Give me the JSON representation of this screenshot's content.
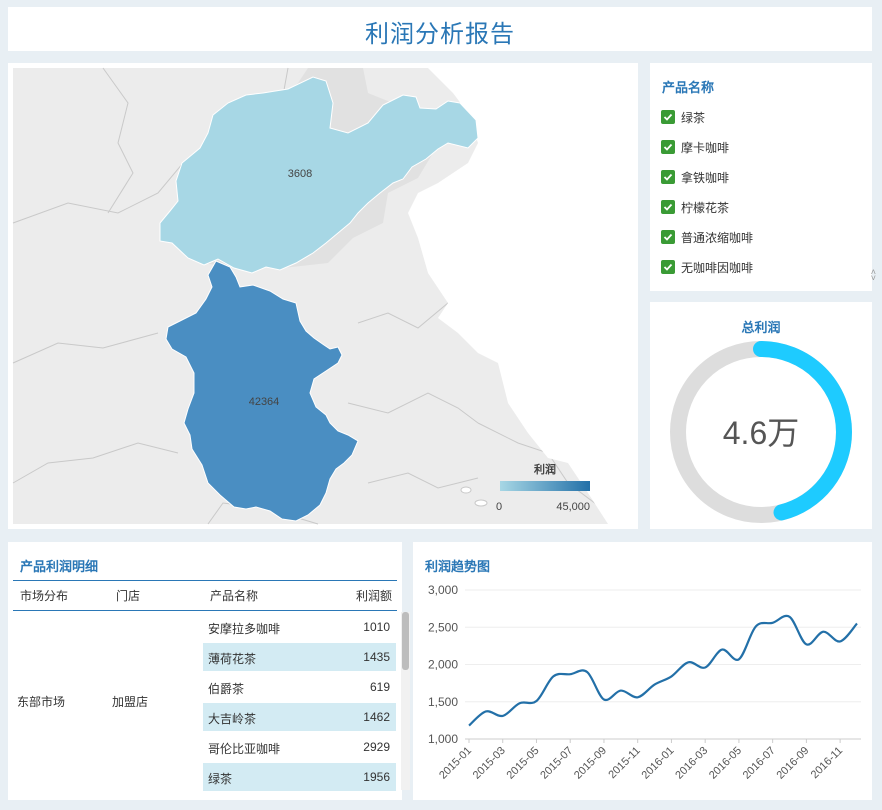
{
  "header": {
    "title": "利润分析报告"
  },
  "map": {
    "regions": [
      {
        "name": "shandong",
        "value_label": "3608"
      },
      {
        "name": "anhui",
        "value_label": "42364"
      }
    ],
    "legend": {
      "title": "利润",
      "min_label": "0",
      "max_label": "45,000"
    }
  },
  "filter": {
    "title": "产品名称",
    "items": [
      "绿茶",
      "摩卡咖啡",
      "拿铁咖啡",
      "柠檬花茶",
      "普通浓缩咖啡",
      "无咖啡因咖啡"
    ]
  },
  "total": {
    "title": "总利润",
    "value": "4.6万",
    "fraction": 0.46
  },
  "table": {
    "title": "产品利润明细",
    "headers": [
      "市场分布",
      "门店",
      "产品名称",
      "利润额"
    ],
    "market": "东部市场",
    "store": "加盟店",
    "rows": [
      {
        "name": "安摩拉多咖啡",
        "value": "1010"
      },
      {
        "name": "薄荷花茶",
        "value": "1435"
      },
      {
        "name": "伯爵茶",
        "value": "619"
      },
      {
        "name": "大吉岭茶",
        "value": "1462"
      },
      {
        "name": "哥伦比亚咖啡",
        "value": "2929"
      },
      {
        "name": "绿茶",
        "value": "1956"
      }
    ]
  },
  "chart_data": {
    "type": "line",
    "title": "利润趋势图",
    "x": [
      "2015-01",
      "2015-02",
      "2015-03",
      "2015-04",
      "2015-05",
      "2015-06",
      "2015-07",
      "2015-08",
      "2015-09",
      "2015-10",
      "2015-11",
      "2015-12",
      "2016-01",
      "2016-02",
      "2016-03",
      "2016-04",
      "2016-05",
      "2016-06",
      "2016-07",
      "2016-08",
      "2016-09",
      "2016-10",
      "2016-11",
      "2016-12"
    ],
    "x_tick_labels": [
      "2015-01",
      "2015-03",
      "2015-05",
      "2015-07",
      "2015-09",
      "2015-11",
      "2016-01",
      "2016-03",
      "2016-05",
      "2016-07",
      "2016-09",
      "2016-11"
    ],
    "series": [
      {
        "values": [
          1180,
          1370,
          1310,
          1480,
          1510,
          1840,
          1870,
          1900,
          1530,
          1650,
          1560,
          1730,
          1840,
          2030,
          1960,
          2200,
          2070,
          2510,
          2560,
          2640,
          2270,
          2440,
          2310,
          2550
        ]
      }
    ],
    "ylim": [
      1000,
      3000
    ],
    "yticks": [
      1000,
      1500,
      2000,
      2500,
      3000
    ],
    "ytick_labels": [
      "1,000",
      "1,500",
      "2,000",
      "2,500",
      "3,000"
    ],
    "grid": true,
    "color": "#2370a8"
  },
  "colors": {
    "accent": "#2a77b6",
    "map_low": "#a7d7e5",
    "map_high": "#4a8ec2",
    "ring": "#1ecbff",
    "ring_track": "#dddddd",
    "check": "#3a9b35"
  }
}
